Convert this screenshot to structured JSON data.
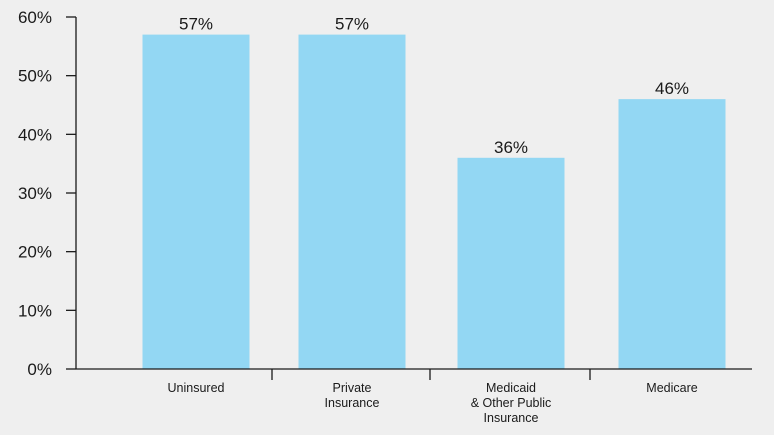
{
  "chart_data": {
    "type": "bar",
    "title": "",
    "xlabel": "",
    "ylabel": "",
    "categories": [
      [
        "Uninsured"
      ],
      [
        "Private",
        "Insurance"
      ],
      [
        "Medicaid",
        "& Other Public",
        "Insurance"
      ],
      [
        "Medicare"
      ]
    ],
    "values": [
      57,
      57,
      36,
      46
    ],
    "data_labels": [
      "57%",
      "57%",
      "36%",
      "46%"
    ],
    "ylim": [
      0,
      60
    ],
    "yticks": [
      0,
      10,
      20,
      30,
      40,
      50,
      60
    ],
    "ytick_labels": [
      "0%",
      "10%",
      "20%",
      "30%",
      "40%",
      "50%",
      "60%"
    ],
    "grid": false,
    "legend": "none",
    "colors": {
      "bar": "#93d7f3",
      "axis": "#1a1a1a",
      "background": "#efefef"
    }
  }
}
